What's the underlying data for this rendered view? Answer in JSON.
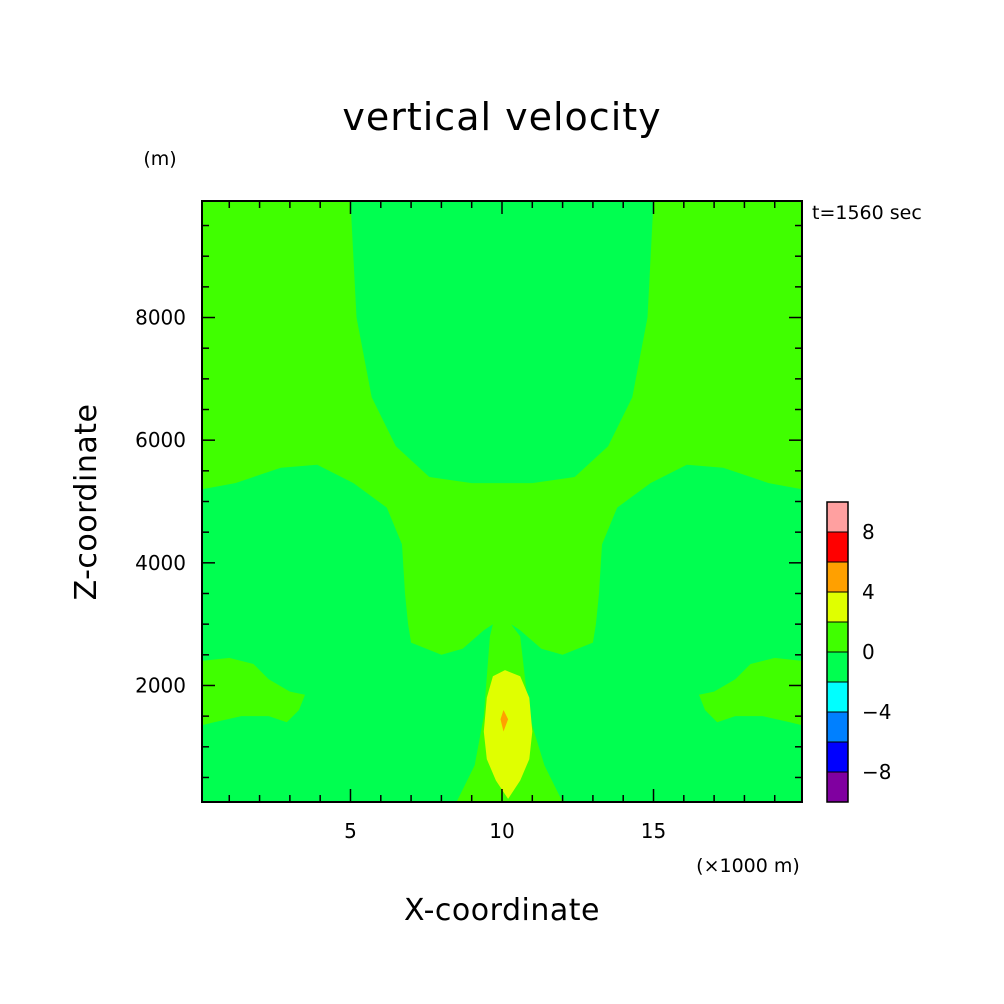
{
  "chart_data": {
    "type": "heatmap",
    "title": "vertical velocity",
    "xlabel": "X-coordinate",
    "ylabel": "Z-coordinate",
    "x_unit": "(×1000 m)",
    "y_unit": "(m)",
    "time_label": "t=1560 sec",
    "xlim": [
      0.1,
      19.9
    ],
    "ylim": [
      100,
      9900
    ],
    "x_ticks": [
      5,
      10,
      15
    ],
    "x_tick_labels": [
      "5",
      "10",
      "15"
    ],
    "y_ticks": [
      2000,
      4000,
      6000,
      8000
    ],
    "y_tick_labels": [
      "2000",
      "4000",
      "6000",
      "8000"
    ],
    "colorbar": {
      "levels": [
        -10,
        -8,
        -6,
        -4,
        -2,
        0,
        2,
        4,
        6,
        8,
        10
      ],
      "colors": [
        "#8000a0",
        "#0000ff",
        "#0080ff",
        "#00ffff",
        "#00ff50",
        "#40ff00",
        "#e0ff00",
        "#ffa000",
        "#ff0000",
        "#ffa0a0"
      ],
      "tick_values": [
        8,
        4,
        0,
        -4,
        -8
      ],
      "tick_labels": [
        "8",
        "4",
        "0",
        "−4",
        "−8"
      ]
    },
    "regions": [
      {
        "name": "background",
        "level": "0 to 2",
        "color": "#40ff00"
      },
      {
        "name": "upper-center",
        "level": "-2 to 0",
        "color": "#00ff50",
        "points": [
          [
            5.0,
            9900
          ],
          [
            5.2,
            8000
          ],
          [
            5.7,
            6700
          ],
          [
            6.5,
            5900
          ],
          [
            7.6,
            5400
          ],
          [
            9.0,
            5300
          ],
          [
            10.0,
            5300
          ],
          [
            11.0,
            5300
          ],
          [
            12.4,
            5400
          ],
          [
            13.5,
            5900
          ],
          [
            14.3,
            6700
          ],
          [
            14.8,
            8000
          ],
          [
            15.0,
            9900
          ]
        ]
      },
      {
        "name": "mid-left",
        "level": "-2 to 0",
        "color": "#00ff50",
        "points": [
          [
            0.1,
            5200
          ],
          [
            1.2,
            5300
          ],
          [
            2.7,
            5550
          ],
          [
            3.9,
            5600
          ],
          [
            5.1,
            5300
          ],
          [
            6.2,
            4900
          ],
          [
            6.7,
            4300
          ],
          [
            6.8,
            3500
          ],
          [
            6.9,
            3000
          ],
          [
            7.0,
            2700
          ],
          [
            8.0,
            2500
          ],
          [
            8.7,
            2600
          ],
          [
            9.4,
            2900
          ],
          [
            9.7,
            3000
          ],
          [
            9.6,
            2800
          ],
          [
            9.4,
            1500
          ],
          [
            9.1,
            700
          ],
          [
            8.7,
            300
          ],
          [
            8.5,
            100
          ],
          [
            0.1,
            100
          ]
        ]
      },
      {
        "name": "mid-right",
        "level": "-2 to 0",
        "color": "#00ff50",
        "points": [
          [
            19.9,
            5200
          ],
          [
            18.8,
            5300
          ],
          [
            17.3,
            5550
          ],
          [
            16.1,
            5600
          ],
          [
            14.9,
            5300
          ],
          [
            13.8,
            4900
          ],
          [
            13.3,
            4300
          ],
          [
            13.2,
            3500
          ],
          [
            13.1,
            3000
          ],
          [
            13.0,
            2700
          ],
          [
            12.0,
            2500
          ],
          [
            11.3,
            2600
          ],
          [
            10.6,
            2900
          ],
          [
            10.3,
            3000
          ],
          [
            10.6,
            2800
          ],
          [
            10.9,
            1500
          ],
          [
            11.4,
            700
          ],
          [
            11.8,
            300
          ],
          [
            12.0,
            100
          ],
          [
            19.9,
            100
          ]
        ]
      },
      {
        "name": "low-left-patch",
        "level": "0 to 2",
        "color": "#40ff00",
        "points": [
          [
            0.1,
            2400
          ],
          [
            1.0,
            2450
          ],
          [
            1.8,
            2350
          ],
          [
            2.3,
            2100
          ],
          [
            3.0,
            1900
          ],
          [
            3.5,
            1850
          ],
          [
            3.3,
            1600
          ],
          [
            2.9,
            1400
          ],
          [
            2.3,
            1500
          ],
          [
            1.4,
            1500
          ],
          [
            0.5,
            1400
          ],
          [
            0.1,
            1350
          ]
        ]
      },
      {
        "name": "low-right-patch",
        "level": "0 to 2",
        "color": "#40ff00",
        "points": [
          [
            19.9,
            2400
          ],
          [
            19.0,
            2450
          ],
          [
            18.2,
            2350
          ],
          [
            17.7,
            2100
          ],
          [
            17.0,
            1900
          ],
          [
            16.5,
            1850
          ],
          [
            16.7,
            1600
          ],
          [
            17.1,
            1400
          ],
          [
            17.7,
            1500
          ],
          [
            18.6,
            1500
          ],
          [
            19.5,
            1400
          ],
          [
            19.9,
            1350
          ]
        ]
      },
      {
        "name": "updraft-core",
        "level": "2 to 4",
        "color": "#e0ff00",
        "points": [
          [
            10.1,
            2250
          ],
          [
            10.6,
            2150
          ],
          [
            10.9,
            1800
          ],
          [
            11.0,
            1250
          ],
          [
            10.9,
            800
          ],
          [
            10.6,
            450
          ],
          [
            10.2,
            150
          ],
          [
            9.8,
            450
          ],
          [
            9.5,
            800
          ],
          [
            9.4,
            1250
          ],
          [
            9.5,
            1800
          ],
          [
            9.7,
            2150
          ]
        ]
      },
      {
        "name": "updraft-max",
        "level": "4 to 6",
        "color": "#ffa000",
        "points": [
          [
            10.05,
            1600
          ],
          [
            10.2,
            1450
          ],
          [
            10.05,
            1250
          ],
          [
            9.95,
            1450
          ]
        ]
      }
    ]
  }
}
